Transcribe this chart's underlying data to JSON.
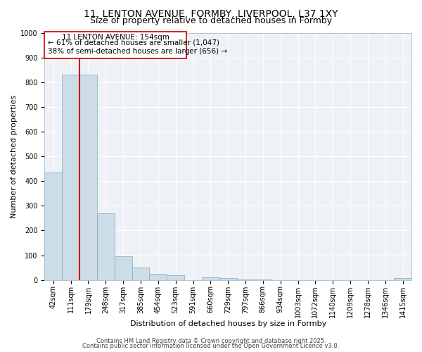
{
  "title_line1": "11, LENTON AVENUE, FORMBY, LIVERPOOL, L37 1XY",
  "title_line2": "Size of property relative to detached houses in Formby",
  "xlabel": "Distribution of detached houses by size in Formby",
  "ylabel": "Number of detached properties",
  "bar_color": "#ccdde8",
  "bar_edge_color": "#7aaabb",
  "bar_edge_width": 0.5,
  "categories": [
    "42sqm",
    "111sqm",
    "179sqm",
    "248sqm",
    "317sqm",
    "385sqm",
    "454sqm",
    "523sqm",
    "591sqm",
    "660sqm",
    "729sqm",
    "797sqm",
    "866sqm",
    "934sqm",
    "1003sqm",
    "1072sqm",
    "1140sqm",
    "1209sqm",
    "1278sqm",
    "1346sqm",
    "1415sqm"
  ],
  "values": [
    435,
    830,
    830,
    270,
    95,
    50,
    25,
    18,
    0,
    10,
    8,
    3,
    1,
    0,
    0,
    0,
    0,
    0,
    0,
    0,
    8
  ],
  "ylim": [
    0,
    1000
  ],
  "yticks": [
    0,
    100,
    200,
    300,
    400,
    500,
    600,
    700,
    800,
    900,
    1000
  ],
  "property_line_color": "#cc0000",
  "property_line_bar_index": 2,
  "annotation_title": "11 LENTON AVENUE: 154sqm",
  "annotation_line2": "← 61% of detached houses are smaller (1,047)",
  "annotation_line3": "38% of semi-detached houses are larger (656) →",
  "annotation_box_color": "#cc0000",
  "fig_background_color": "#ffffff",
  "ax_background_color": "#eef2f7",
  "grid_color": "#ffffff",
  "footer_line1": "Contains HM Land Registry data © Crown copyright and database right 2025.",
  "footer_line2": "Contains public sector information licensed under the Open Government Licence v3.0.",
  "title_fontsize": 10,
  "subtitle_fontsize": 9,
  "axis_label_fontsize": 8,
  "tick_fontsize": 7,
  "annotation_fontsize": 7.5,
  "footer_fontsize": 6
}
